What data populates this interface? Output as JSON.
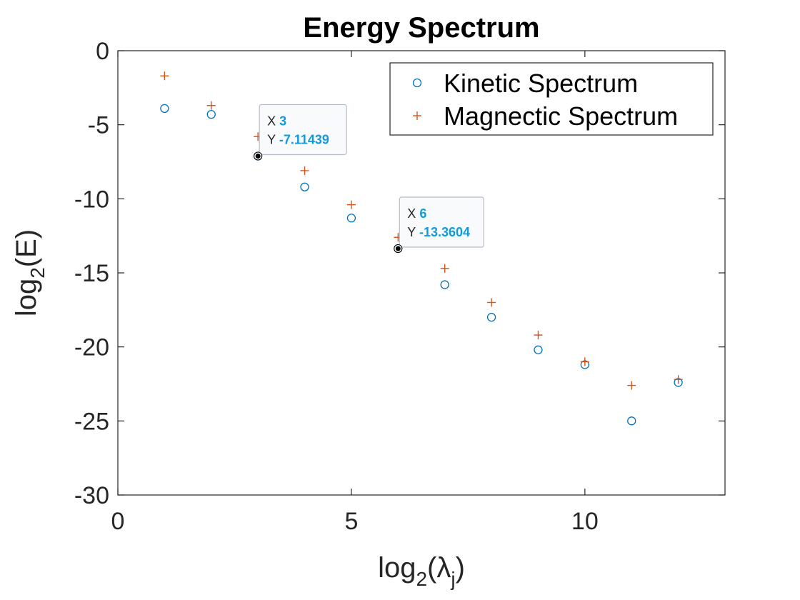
{
  "chart_data": {
    "type": "scatter",
    "title": "Energy Spectrum",
    "xlabel": "log2(λj)",
    "xlabel_parts": {
      "prefix": "log",
      "base": "2",
      "open": "(",
      "lambda": "λ",
      "sub": "j",
      "close": ")"
    },
    "ylabel": "log2(E)",
    "ylabel_parts": {
      "prefix": "log",
      "base": "2",
      "rest": "(E)"
    },
    "xlim": [
      0,
      13
    ],
    "ylim": [
      -30,
      0
    ],
    "xticks": [
      0,
      5,
      10
    ],
    "xtick_labels": [
      "0",
      "5",
      "10"
    ],
    "yticks": [
      0,
      -5,
      -10,
      -15,
      -20,
      -25,
      -30
    ],
    "ytick_labels": [
      "0",
      "-5",
      "-10",
      "-15",
      "-20",
      "-25",
      "-30"
    ],
    "grid": false,
    "legend_position": "top-right",
    "series": [
      {
        "name": "Kinetic Spectrum",
        "marker": "circle",
        "color": "#0072bd",
        "x": [
          1,
          2,
          3,
          4,
          5,
          6,
          7,
          8,
          9,
          10,
          11,
          12
        ],
        "y": [
          -3.9,
          -4.3,
          -7.11439,
          -9.2,
          -11.3,
          -13.3604,
          -15.8,
          -18.0,
          -20.2,
          -21.2,
          -25.0,
          -22.4
        ]
      },
      {
        "name": "Magnectic Spectrum",
        "marker": "plus",
        "color": "#d95319",
        "x": [
          1,
          2,
          3,
          4,
          5,
          6,
          7,
          8,
          9,
          10,
          11,
          12
        ],
        "y": [
          -1.7,
          -3.7,
          -5.8,
          -8.1,
          -10.4,
          -12.6,
          -14.7,
          -17.0,
          -19.2,
          -21.0,
          -22.6,
          -22.2
        ]
      }
    ],
    "datatips": [
      {
        "x_key": "X",
        "y_key": "Y",
        "x_label": "3",
        "y_label": "-7.11439",
        "x": 3,
        "y": -7.11439
      },
      {
        "x_key": "X",
        "y_key": "Y",
        "x_label": "6",
        "y_label": "-13.3604",
        "x": 6,
        "y": -13.3604
      }
    ]
  }
}
